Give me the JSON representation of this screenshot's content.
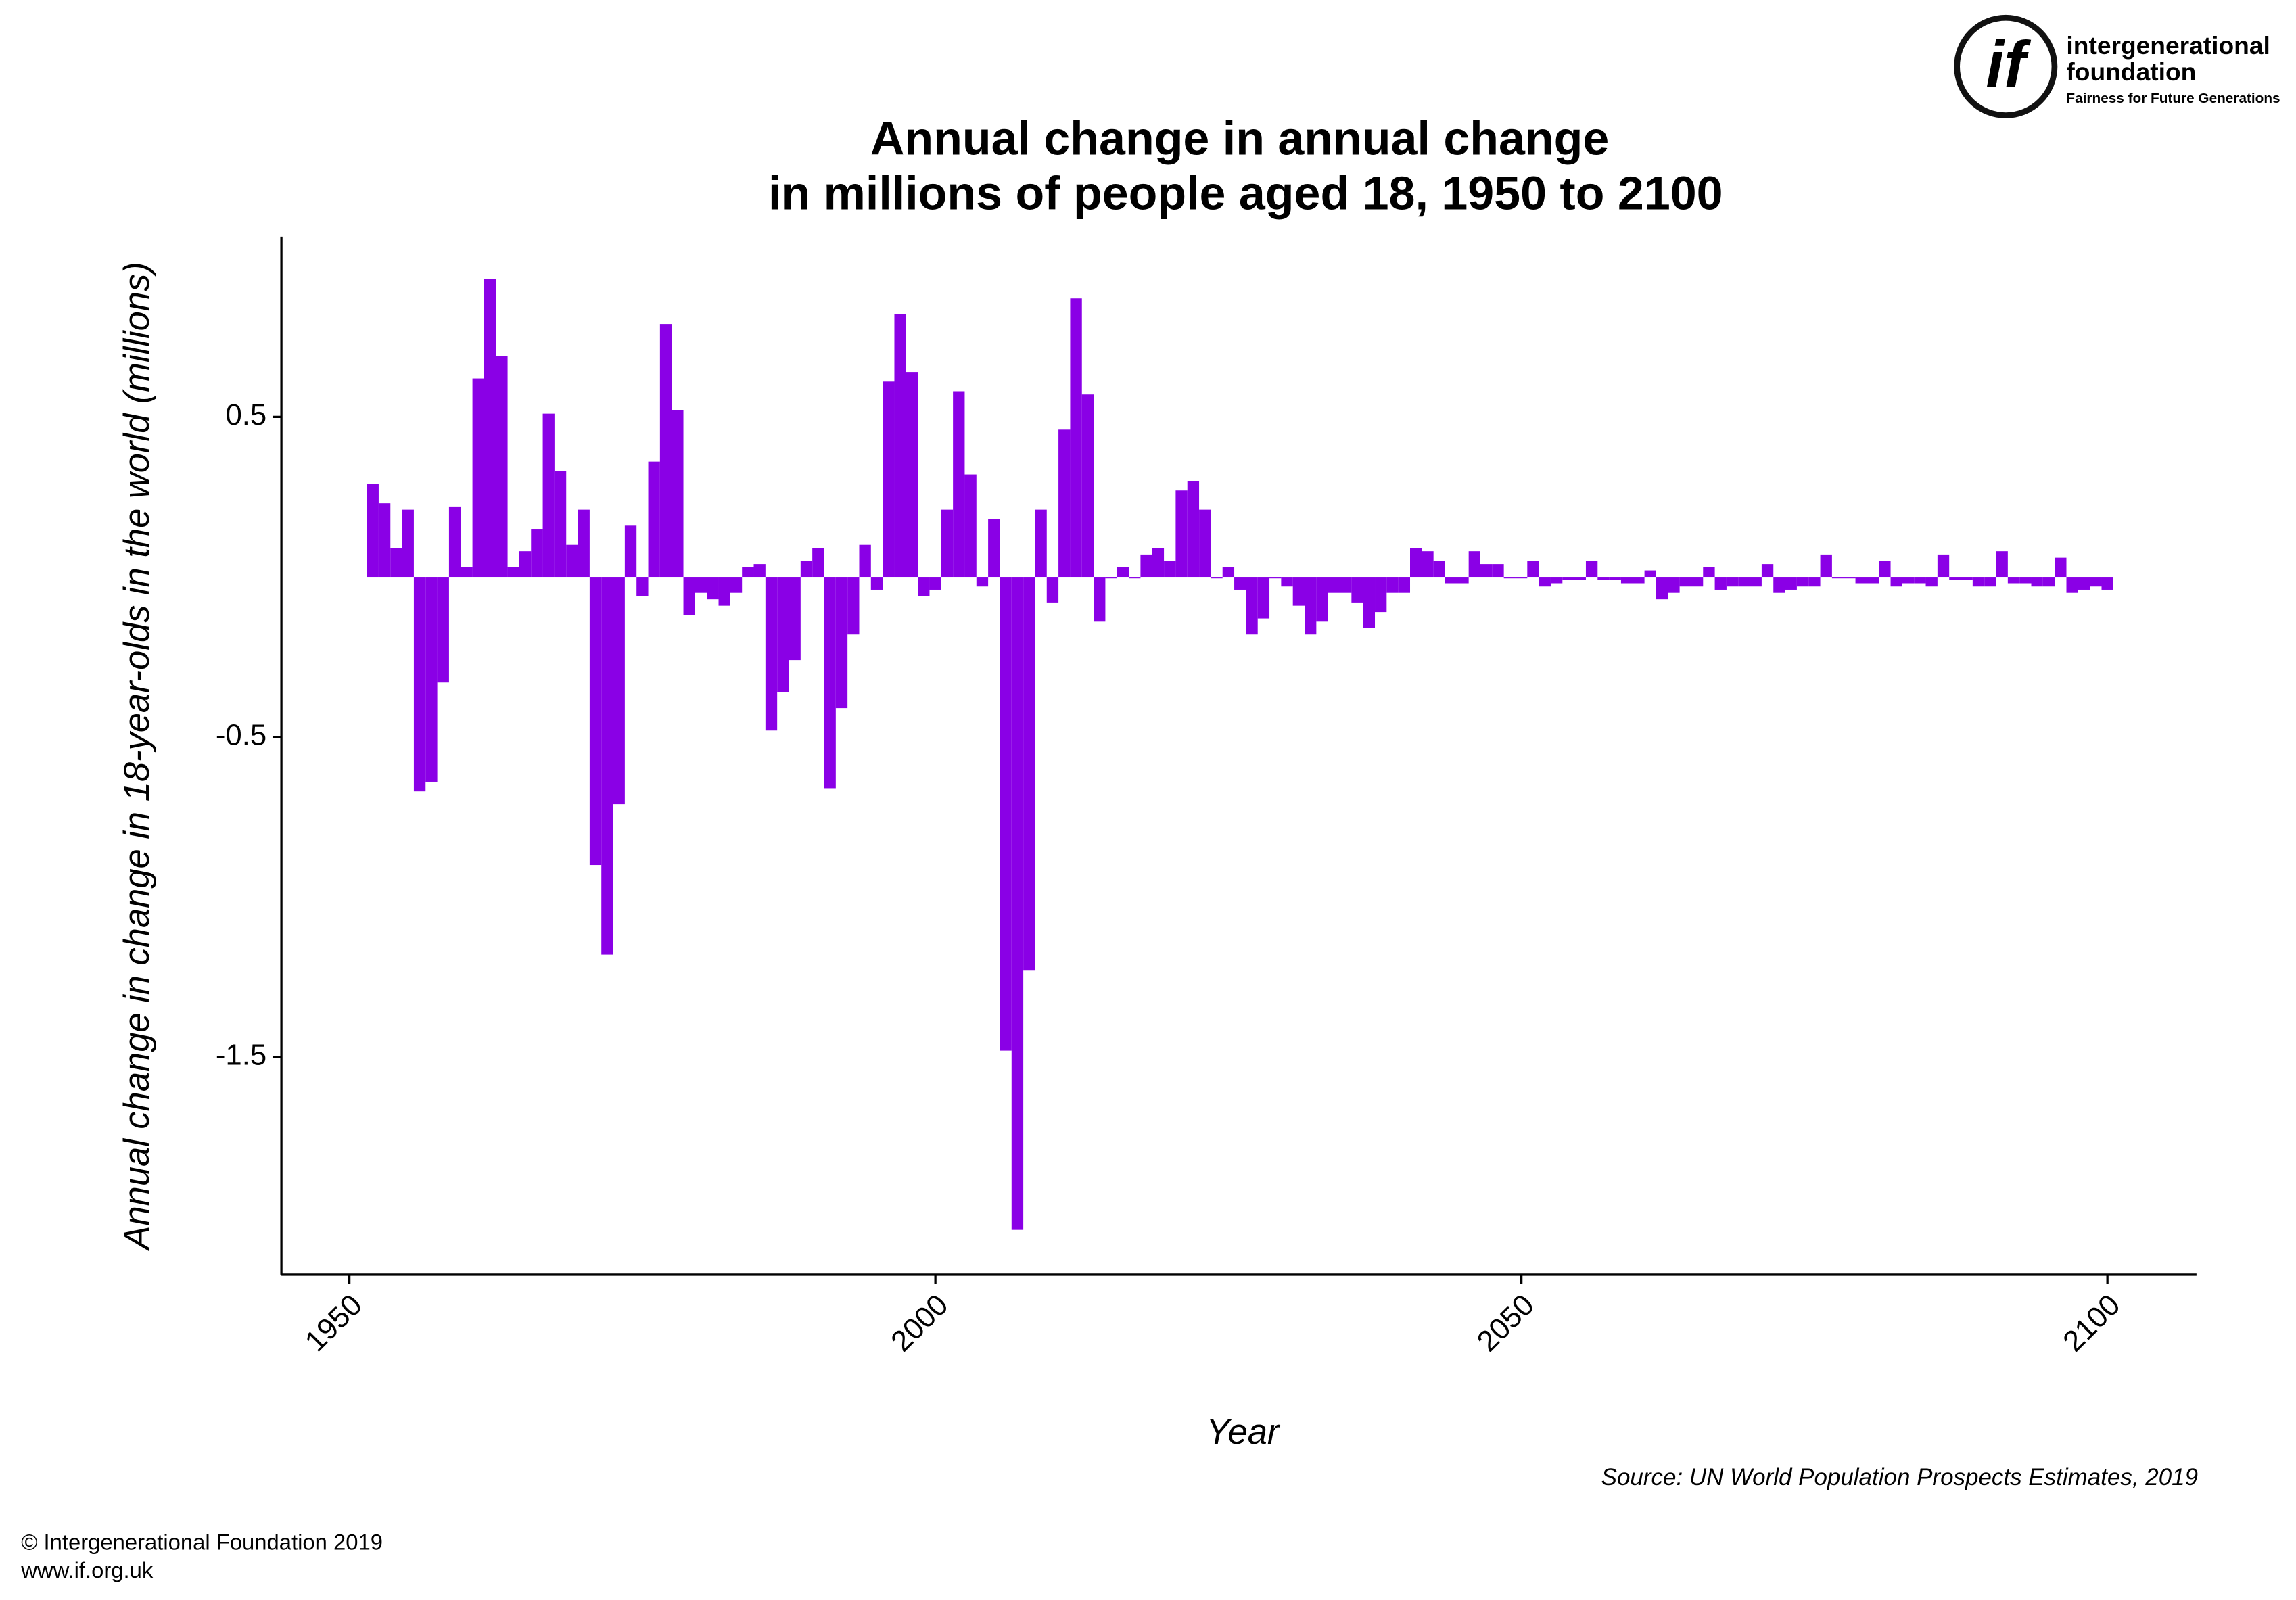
{
  "chart_data": {
    "type": "bar",
    "title": [
      "Annual change in annual change",
      "in millions of people aged 18, 1950 to 2100"
    ],
    "x_label": "Year",
    "y_label": "Annual change in change in 18-year-olds in the world (millions)",
    "source": "Source: UN World Population Prospects Estimates, 2019",
    "color": "#8a00e6",
    "x": [
      1952,
      1953,
      1954,
      1955,
      1956,
      1957,
      1958,
      1959,
      1960,
      1961,
      1962,
      1963,
      1964,
      1965,
      1966,
      1967,
      1968,
      1969,
      1970,
      1971,
      1972,
      1973,
      1974,
      1975,
      1976,
      1977,
      1978,
      1979,
      1980,
      1981,
      1982,
      1983,
      1984,
      1985,
      1986,
      1987,
      1988,
      1989,
      1990,
      1991,
      1992,
      1993,
      1994,
      1995,
      1996,
      1997,
      1998,
      1999,
      2000,
      2001,
      2002,
      2003,
      2004,
      2005,
      2006,
      2007,
      2008,
      2009,
      2010,
      2011,
      2012,
      2013,
      2014,
      2015,
      2016,
      2017,
      2018,
      2019,
      2020,
      2021,
      2022,
      2023,
      2024,
      2025,
      2026,
      2027,
      2028,
      2029,
      2030,
      2031,
      2032,
      2033,
      2034,
      2035,
      2036,
      2037,
      2038,
      2039,
      2040,
      2041,
      2042,
      2043,
      2044,
      2045,
      2046,
      2047,
      2048,
      2049,
      2050,
      2051,
      2052,
      2053,
      2054,
      2055,
      2056,
      2057,
      2058,
      2059,
      2060,
      2061,
      2062,
      2063,
      2064,
      2065,
      2066,
      2067,
      2068,
      2069,
      2070,
      2071,
      2072,
      2073,
      2074,
      2075,
      2076,
      2077,
      2078,
      2079,
      2080,
      2081,
      2082,
      2083,
      2084,
      2085,
      2086,
      2087,
      2088,
      2089,
      2090,
      2091,
      2092,
      2093,
      2094,
      2095,
      2096,
      2097,
      2098,
      2099,
      2100
    ],
    "values": [
      0.29,
      0.23,
      0.09,
      0.21,
      -0.67,
      -0.64,
      -0.33,
      0.22,
      0.03,
      0.62,
      0.93,
      0.69,
      0.03,
      0.08,
      0.15,
      0.51,
      0.33,
      0.1,
      0.21,
      -0.9,
      -1.18,
      -0.71,
      0.16,
      -0.06,
      0.36,
      0.79,
      0.52,
      -0.12,
      -0.05,
      -0.07,
      -0.09,
      -0.05,
      0.03,
      0.04,
      -0.48,
      -0.36,
      -0.26,
      0.05,
      0.09,
      -0.66,
      -0.41,
      -0.18,
      0.1,
      -0.04,
      0.61,
      0.82,
      0.64,
      -0.06,
      -0.04,
      0.21,
      0.58,
      0.32,
      -0.03,
      0.18,
      -1.48,
      -2.04,
      -1.23,
      0.21,
      -0.08,
      0.46,
      0.87,
      0.57,
      -0.14,
      0,
      0.03,
      0,
      0.07,
      0.09,
      0.05,
      0.27,
      0.3,
      0.21,
      0,
      0.03,
      -0.04,
      -0.18,
      -0.13,
      0,
      -0.03,
      -0.09,
      -0.18,
      -0.14,
      -0.05,
      -0.05,
      -0.08,
      -0.16,
      -0.11,
      -0.05,
      -0.05,
      0.09,
      0.08,
      0.05,
      -0.02,
      -0.02,
      0.08,
      0.04,
      0.04,
      0,
      0,
      0.05,
      -0.03,
      -0.02,
      -0.01,
      -0.01,
      0.05,
      -0.01,
      -0.01,
      -0.02,
      -0.02,
      0.02,
      -0.07,
      -0.05,
      -0.03,
      -0.03,
      0.03,
      -0.04,
      -0.03,
      -0.03,
      -0.03,
      0.04,
      -0.05,
      -0.04,
      -0.03,
      -0.03,
      0.07,
      0,
      0,
      -0.02,
      -0.02,
      0.05,
      -0.03,
      -0.02,
      -0.02,
      -0.03,
      0.07,
      -0.01,
      -0.01,
      -0.03,
      -0.03,
      0.08,
      -0.02,
      -0.02,
      -0.03,
      -0.03,
      0.06,
      -0.05,
      -0.04,
      -0.03,
      -0.04
    ],
    "xlim": [
      1944.2,
      2107.6
    ],
    "xticks": [
      1950,
      2000,
      2050,
      2100
    ],
    "ylim": [
      -2.18,
      1.063
    ],
    "yticks": [
      0.5,
      -0.5,
      -1.5
    ],
    "grid": false
  },
  "logo": {
    "mark": "if",
    "name_line1": "intergenerational",
    "name_line2": "foundation",
    "tagline": "Fairness for Future Generations"
  },
  "footer": {
    "copyright": "© Intergenerational Foundation 2019",
    "url": "www.if.org.uk"
  }
}
